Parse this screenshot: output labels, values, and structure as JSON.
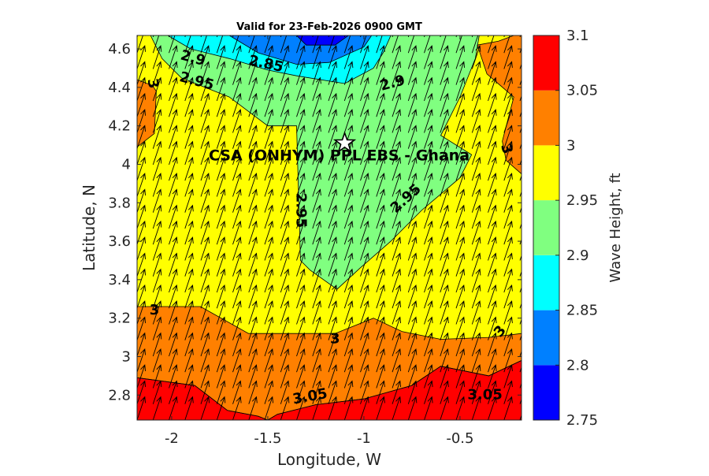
{
  "chart_data": {
    "type": "contour",
    "title": "Valid for 23-Feb-2026 0900 GMT",
    "xlabel": "Longitude, W",
    "ylabel": "Latitude, N",
    "xlim": [
      -2.18,
      -0.18
    ],
    "ylim": [
      2.67,
      4.67
    ],
    "x_ticks": [
      -2,
      -1.5,
      -1,
      -0.5
    ],
    "x_tick_labels": [
      "-2",
      "-1.5",
      "-1",
      "-0.5"
    ],
    "y_ticks": [
      2.8,
      3,
      3.2,
      3.4,
      3.6,
      3.8,
      4,
      4.2,
      4.4,
      4.6
    ],
    "y_tick_labels": [
      "2.8",
      "3",
      "3.2",
      "3.4",
      "3.6",
      "3.8",
      "4",
      "4.2",
      "4.4",
      "4.6"
    ],
    "colorbar": {
      "label": "Wave Height, ft",
      "levels": [
        2.75,
        2.8,
        2.85,
        2.9,
        2.95,
        3.0,
        3.05,
        3.1
      ],
      "tick_labels": [
        "2.75",
        "2.8",
        "2.85",
        "2.9",
        "2.95",
        "3",
        "3.05",
        "3.1"
      ],
      "colors": [
        "#0000ff",
        "#0080ff",
        "#00ffff",
        "#80ff80",
        "#ffff00",
        "#ff8000",
        "#ff0000"
      ]
    },
    "regions": [
      {
        "level": "3.05–3.1",
        "color": "#ff0000",
        "points": [
          [
            -2.18,
            2.67
          ],
          [
            -2.18,
            2.89
          ],
          [
            -1.88,
            2.85
          ],
          [
            -1.71,
            2.72
          ],
          [
            -1.55,
            2.69
          ],
          [
            -1.5,
            2.67
          ]
        ]
      },
      {
        "level": "3.05–3.1",
        "color": "#ff0000",
        "points": [
          [
            -1.5,
            2.67
          ],
          [
            -1.45,
            2.7
          ],
          [
            -1.25,
            2.75
          ],
          [
            -1.0,
            2.78
          ],
          [
            -0.75,
            2.85
          ],
          [
            -0.6,
            2.95
          ],
          [
            -0.35,
            2.9
          ],
          [
            -0.18,
            2.98
          ],
          [
            -0.18,
            2.67
          ]
        ]
      },
      {
        "level": "3.0–3.05",
        "color": "#ff8000",
        "points": [
          [
            -2.18,
            2.89
          ],
          [
            -1.88,
            2.85
          ],
          [
            -1.71,
            2.72
          ],
          [
            -1.55,
            2.69
          ],
          [
            -1.5,
            2.67
          ],
          [
            -1.45,
            2.7
          ],
          [
            -1.25,
            2.75
          ],
          [
            -1.0,
            2.78
          ],
          [
            -0.75,
            2.85
          ],
          [
            -0.6,
            2.95
          ],
          [
            -0.35,
            2.9
          ],
          [
            -0.18,
            2.98
          ],
          [
            -0.18,
            3.12
          ],
          [
            -0.35,
            3.1
          ],
          [
            -0.6,
            3.09
          ],
          [
            -0.8,
            3.13
          ],
          [
            -0.95,
            3.2
          ],
          [
            -1.15,
            3.12
          ],
          [
            -1.6,
            3.12
          ],
          [
            -1.85,
            3.26
          ],
          [
            -2.18,
            3.26
          ]
        ]
      },
      {
        "level": "3.0–3.05",
        "color": "#ff8000",
        "points": [
          [
            -2.18,
            4.44
          ],
          [
            -2.1,
            4.41
          ],
          [
            -2.08,
            4.38
          ],
          [
            -2.09,
            4.16
          ],
          [
            -2.18,
            4.09
          ]
        ]
      },
      {
        "level": "3.0–3.05",
        "color": "#ff8000",
        "points": [
          [
            -0.41,
            4.62
          ],
          [
            -0.3,
            4.64
          ],
          [
            -0.22,
            4.67
          ],
          [
            -0.18,
            4.67
          ],
          [
            -0.18,
            3.95
          ],
          [
            -0.26,
            4.02
          ],
          [
            -0.28,
            4.12
          ],
          [
            -0.22,
            4.35
          ],
          [
            -0.36,
            4.47
          ]
        ]
      },
      {
        "level": "2.9–2.95",
        "color": "#80ff80",
        "points": [
          [
            -2.11,
            4.67
          ],
          [
            -2.05,
            4.55
          ],
          [
            -1.95,
            4.45
          ],
          [
            -1.7,
            4.35
          ],
          [
            -1.5,
            4.2
          ],
          [
            -1.35,
            4.2
          ],
          [
            -1.33,
            3.5
          ],
          [
            -1.28,
            3.45
          ],
          [
            -1.14,
            3.35
          ],
          [
            -1.02,
            3.46
          ],
          [
            -0.86,
            3.6
          ],
          [
            -0.7,
            3.76
          ],
          [
            -0.5,
            3.93
          ],
          [
            -0.44,
            4.05
          ],
          [
            -0.6,
            4.15
          ],
          [
            -0.5,
            4.35
          ],
          [
            -0.42,
            4.55
          ],
          [
            -0.4,
            4.67
          ]
        ]
      },
      {
        "level": "2.85–2.9",
        "color": "#00ffff",
        "points": [
          [
            -2.02,
            4.67
          ],
          [
            -1.9,
            4.6
          ],
          [
            -1.7,
            4.55
          ],
          [
            -1.5,
            4.49
          ],
          [
            -1.35,
            4.46
          ],
          [
            -1.1,
            4.42
          ],
          [
            -0.95,
            4.5
          ],
          [
            -0.9,
            4.58
          ],
          [
            -0.86,
            4.67
          ]
        ]
      },
      {
        "level": "2.8–2.85",
        "color": "#0080ff",
        "points": [
          [
            -1.7,
            4.67
          ],
          [
            -1.55,
            4.58
          ],
          [
            -1.35,
            4.52
          ],
          [
            -1.18,
            4.53
          ],
          [
            -1.0,
            4.61
          ],
          [
            -0.96,
            4.67
          ]
        ]
      },
      {
        "level": "2.75–2.8",
        "color": "#0000ff",
        "points": [
          [
            -1.35,
            4.67
          ],
          [
            -1.3,
            4.62
          ],
          [
            -1.15,
            4.62
          ],
          [
            -1.08,
            4.67
          ]
        ]
      }
    ],
    "contour_labels": [
      {
        "text": "2.9",
        "x": -1.89,
        "y": 4.55,
        "angle": 15
      },
      {
        "text": "2.85",
        "x": -1.51,
        "y": 4.52,
        "angle": 12
      },
      {
        "text": "2.95",
        "x": -1.87,
        "y": 4.43,
        "angle": 15
      },
      {
        "text": "2.9",
        "x": -0.85,
        "y": 4.42,
        "angle": -15
      },
      {
        "text": "3",
        "x": -2.1,
        "y": 4.42,
        "angle": 80
      },
      {
        "text": "2.95",
        "x": -1.33,
        "y": 3.76,
        "angle": 90
      },
      {
        "text": "2.95",
        "x": -0.78,
        "y": 3.82,
        "angle": -42
      },
      {
        "text": "3",
        "x": -0.26,
        "y": 4.08,
        "angle": 75
      },
      {
        "text": "3",
        "x": -2.09,
        "y": 3.24,
        "angle": 0
      },
      {
        "text": "3",
        "x": -1.15,
        "y": 3.09,
        "angle": 0
      },
      {
        "text": "3",
        "x": -0.29,
        "y": 3.13,
        "angle": -50
      },
      {
        "text": "3.05",
        "x": -1.28,
        "y": 2.79,
        "angle": -10
      },
      {
        "text": "3.05",
        "x": -0.37,
        "y": 2.8,
        "angle": 0
      }
    ],
    "vector_field": {
      "description": "wave direction arrows on regular grid",
      "x_start": -2.18,
      "x_end": -0.18,
      "x_step": 0.083,
      "y_start": 2.67,
      "y_end": 4.67,
      "y_step": 0.083,
      "dx": 0.04,
      "dy": 0.12
    },
    "site": {
      "name": "CSA (ONHYM) PPL EBS  - Ghana",
      "lon": -1.1,
      "lat": 4.11
    }
  }
}
